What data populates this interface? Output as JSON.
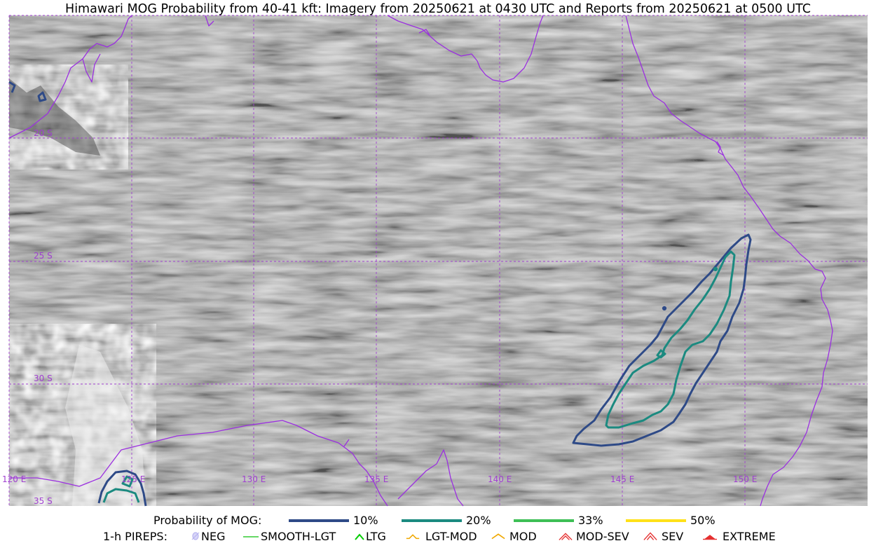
{
  "title": "Himawari MOG Probability from 40-41 kft: Imagery from 20250621 at 0430 UTC and Reports from 20250621 at 0500 UTC",
  "map": {
    "longitude_labels": [
      "120 E",
      "125 E",
      "130 E",
      "135 E",
      "140 E",
      "145 E",
      "150 E"
    ],
    "latitude_labels": [
      "20 S",
      "25 S",
      "30 S",
      "35 S"
    ],
    "gridline_color": "#a040d0",
    "coastline_color": "#9b30e0",
    "contours": [
      {
        "level": "10%",
        "color": "#2e4a87"
      },
      {
        "level": "20%",
        "color": "#1b8a80"
      }
    ]
  },
  "legend": {
    "probability": {
      "label": "Probability of MOG:",
      "items": [
        {
          "label": "10%",
          "color": "#2e4a87"
        },
        {
          "label": "20%",
          "color": "#1b8a80"
        },
        {
          "label": "33%",
          "color": "#3dbf55"
        },
        {
          "label": "50%",
          "color": "#ffe119"
        }
      ]
    },
    "pireps": {
      "label": "1-h PIREPS:",
      "items": [
        {
          "label": "NEG",
          "icon": "neg-icon",
          "color": "#b8b4f0"
        },
        {
          "label": "SMOOTH-LGT",
          "icon": "smooth-lgt-line-icon",
          "color": "#33cc33"
        },
        {
          "label": "LTG",
          "icon": "ltg-caret-icon",
          "color": "#00cc00"
        },
        {
          "label": "LGT-MOD",
          "icon": "lgt-mod-icon",
          "color": "#f0a800"
        },
        {
          "label": "MOD",
          "icon": "mod-icon",
          "color": "#f0a800"
        },
        {
          "label": "MOD-SEV",
          "icon": "mod-sev-icon",
          "color": "#e53030"
        },
        {
          "label": "SEV",
          "icon": "sev-icon",
          "color": "#e53030"
        },
        {
          "label": "EXTREME",
          "icon": "extreme-icon",
          "color": "#e53030"
        }
      ]
    }
  }
}
